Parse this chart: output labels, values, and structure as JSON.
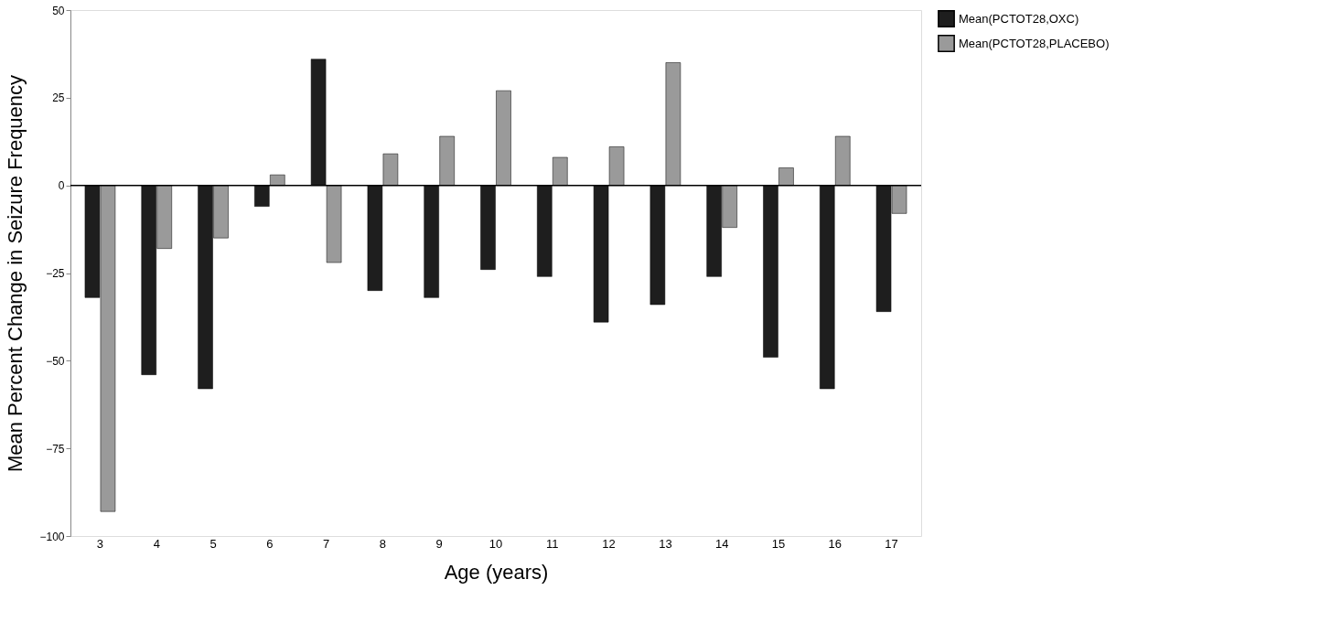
{
  "chart_data": {
    "type": "bar",
    "xlabel": "Age (years)",
    "ylabel": "Mean Percent Change in Seizure Frequency",
    "categories": [
      "3",
      "4",
      "5",
      "6",
      "7",
      "8",
      "9",
      "10",
      "11",
      "12",
      "13",
      "14",
      "15",
      "16",
      "17"
    ],
    "series": [
      {
        "name": "Mean(PCTOT28,OXC)",
        "color": "#1e1e1e",
        "values": [
          -32,
          -54,
          -58,
          -6,
          36,
          -30,
          -32,
          -24,
          -26,
          -39,
          -34,
          -26,
          -49,
          -58,
          -36
        ]
      },
      {
        "name": "Mean(PCTOT28,PLACEBO)",
        "color": "#9a9a9a",
        "values": [
          -93,
          -18,
          -15,
          3,
          -22,
          9,
          14,
          27,
          8,
          11,
          35,
          -12,
          5,
          14,
          -8
        ]
      }
    ],
    "ylim": [
      -100,
      50
    ],
    "yticks": [
      -100,
      -75,
      -50,
      -25,
      0,
      25,
      50
    ],
    "grid": false,
    "legend": "right",
    "ref_lines": [
      {
        "axis": "y",
        "value": 0
      }
    ]
  }
}
